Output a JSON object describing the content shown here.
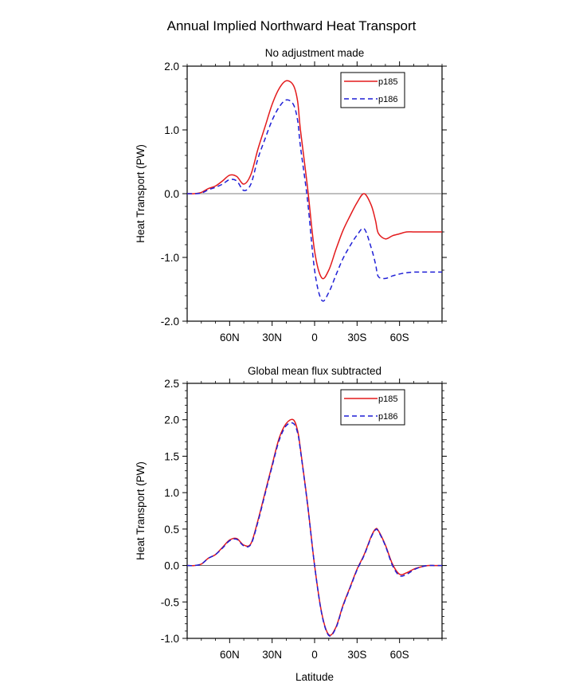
{
  "title": "Annual Implied Northward Heat Transport",
  "legend_entries": [
    "p185",
    "p186"
  ],
  "colors": {
    "p185": "#e31a1c",
    "p186": "#1f1fd6",
    "zero_line": "#555555",
    "axis": "#000000"
  },
  "chart_data": [
    {
      "type": "line",
      "title": "No adjustment made",
      "xlabel": "",
      "ylabel": "Heat Transport (PW)",
      "xlim": [
        90,
        -90
      ],
      "ylim": [
        -2.0,
        2.0
      ],
      "xticks": [
        60,
        30,
        0,
        -30,
        -60
      ],
      "xticklabels": [
        "60N",
        "30N",
        "0",
        "30S",
        "60S"
      ],
      "yticks": [
        -2.0,
        -1.0,
        0.0,
        1.0,
        2.0
      ],
      "yticklabels": [
        "-2.0",
        "-1.0",
        "0.0",
        "1.0",
        "2.0"
      ],
      "legend": "top-right",
      "x": [
        90,
        85,
        80,
        75,
        70,
        65,
        60,
        55,
        50,
        45,
        40,
        35,
        30,
        25,
        20,
        15,
        12,
        10,
        5,
        0,
        -5,
        -10,
        -15,
        -20,
        -25,
        -30,
        -35,
        -40,
        -43,
        -45,
        -50,
        -55,
        -60,
        -65,
        -70,
        -75,
        -80,
        -85,
        -90
      ],
      "series": [
        {
          "name": "p185",
          "values": [
            0.0,
            0.0,
            0.02,
            0.08,
            0.12,
            0.2,
            0.29,
            0.27,
            0.15,
            0.3,
            0.7,
            1.05,
            1.4,
            1.65,
            1.77,
            1.7,
            1.45,
            1.0,
            0.1,
            -0.9,
            -1.32,
            -1.2,
            -0.88,
            -0.58,
            -0.35,
            -0.14,
            0.0,
            -0.18,
            -0.42,
            -0.62,
            -0.71,
            -0.66,
            -0.63,
            -0.6,
            -0.6,
            -0.6,
            -0.6,
            -0.6,
            -0.6
          ]
        },
        {
          "name": "p186",
          "values": [
            0.0,
            0.0,
            0.01,
            0.06,
            0.1,
            0.15,
            0.22,
            0.2,
            0.05,
            0.15,
            0.55,
            0.86,
            1.15,
            1.36,
            1.47,
            1.4,
            1.15,
            0.74,
            -0.1,
            -1.2,
            -1.67,
            -1.55,
            -1.28,
            -1.02,
            -0.82,
            -0.65,
            -0.55,
            -0.85,
            -1.1,
            -1.3,
            -1.33,
            -1.29,
            -1.26,
            -1.24,
            -1.23,
            -1.23,
            -1.23,
            -1.23,
            -1.23
          ]
        }
      ]
    },
    {
      "type": "line",
      "title": "Global mean flux subtracted",
      "xlabel": "Latitude",
      "ylabel": "Heat Transport (PW)",
      "xlim": [
        90,
        -90
      ],
      "ylim": [
        -1.0,
        2.5
      ],
      "xticks": [
        60,
        30,
        0,
        -30,
        -60
      ],
      "xticklabels": [
        "60N",
        "30N",
        "0",
        "30S",
        "60S"
      ],
      "yticks": [
        -1.0,
        -0.5,
        0.0,
        0.5,
        1.0,
        1.5,
        2.0,
        2.5
      ],
      "yticklabels": [
        "-1.0",
        "-0.5",
        "0.0",
        "0.5",
        "1.0",
        "1.5",
        "2.0",
        "2.5"
      ],
      "legend": "top-right",
      "x": [
        90,
        85,
        80,
        75,
        70,
        65,
        60,
        55,
        50,
        45,
        40,
        35,
        30,
        25,
        20,
        15,
        12,
        10,
        5,
        0,
        -5,
        -10,
        -15,
        -20,
        -25,
        -30,
        -35,
        -40,
        -43,
        -45,
        -50,
        -55,
        -60,
        -65,
        -70,
        -75,
        -80,
        -85,
        -90
      ],
      "series": [
        {
          "name": "p185",
          "values": [
            0.0,
            0.0,
            0.02,
            0.1,
            0.15,
            0.25,
            0.35,
            0.37,
            0.28,
            0.3,
            0.62,
            1.0,
            1.38,
            1.75,
            1.95,
            2.0,
            1.85,
            1.6,
            0.85,
            0.0,
            -0.65,
            -0.95,
            -0.85,
            -0.55,
            -0.3,
            -0.05,
            0.15,
            0.4,
            0.5,
            0.48,
            0.28,
            0.02,
            -0.12,
            -0.1,
            -0.05,
            -0.02,
            0.0,
            0.0,
            0.0
          ]
        },
        {
          "name": "p186",
          "values": [
            0.0,
            0.0,
            0.02,
            0.1,
            0.15,
            0.24,
            0.34,
            0.36,
            0.27,
            0.29,
            0.6,
            0.98,
            1.36,
            1.72,
            1.92,
            1.95,
            1.82,
            1.58,
            0.84,
            0.0,
            -0.66,
            -0.96,
            -0.86,
            -0.56,
            -0.31,
            -0.06,
            0.14,
            0.39,
            0.49,
            0.47,
            0.27,
            0.0,
            -0.14,
            -0.12,
            -0.06,
            -0.02,
            0.0,
            0.0,
            0.0
          ]
        }
      ]
    }
  ]
}
